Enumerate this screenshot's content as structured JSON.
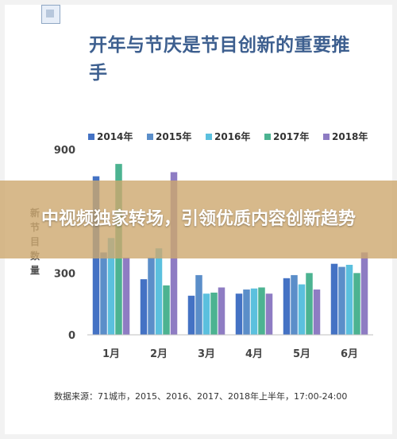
{
  "banner": {
    "text": "中视频独家转场，引领优质内容创新趋势"
  },
  "source_note": "数据来源：71城市，2015、2016、2017、2018年上半年，17:00-24:00",
  "chart_data": {
    "type": "bar",
    "title": "开年与节庆是节目创新的重要推手",
    "ylabel": "新节目数量",
    "categories": [
      "1月",
      "2月",
      "3月",
      "4月",
      "5月",
      "6月"
    ],
    "ylim": [
      0,
      900
    ],
    "yticks": [
      0,
      300,
      900
    ],
    "legend_position": "top",
    "grid": false,
    "series": [
      {
        "name": "2014年",
        "color": "#4472c4",
        "values": [
          770,
          270,
          190,
          200,
          275,
          345
        ]
      },
      {
        "name": "2015年",
        "color": "#5b8ec9",
        "values": [
          400,
          375,
          290,
          220,
          290,
          330
        ]
      },
      {
        "name": "2016年",
        "color": "#5bc0de",
        "values": [
          470,
          420,
          200,
          225,
          245,
          340
        ]
      },
      {
        "name": "2017年",
        "color": "#4cb391",
        "values": [
          830,
          240,
          205,
          230,
          300,
          300
        ]
      },
      {
        "name": "2018年",
        "color": "#8e7cc3",
        "values": [
          375,
          790,
          230,
          200,
          220,
          400
        ]
      }
    ]
  }
}
